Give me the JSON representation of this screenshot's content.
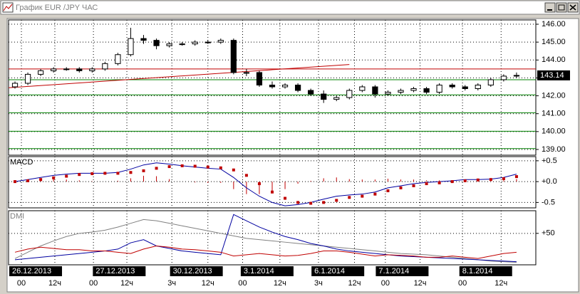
{
  "window": {
    "title": "График EUR /JPY ЧАС"
  },
  "chart_data": [
    {
      "type": "candlestick",
      "xlim": [
        -0.5,
        40.5
      ],
      "ylim": [
        138.68,
        146.24
      ],
      "yticks": [
        {
          "value": 139,
          "label": "139.00"
        },
        {
          "value": 140,
          "label": "140.00"
        },
        {
          "value": 141,
          "label": "141.00"
        },
        {
          "value": 142,
          "label": "142.00"
        },
        {
          "value": 143,
          "label": "143.00"
        },
        {
          "value": 144,
          "label": "144.00"
        },
        {
          "value": 145,
          "label": "145.00"
        },
        {
          "value": 146,
          "label": "146.00"
        }
      ],
      "xticks": [
        {
          "value": 0.5,
          "label": "00"
        },
        {
          "value": 3.1,
          "label": "12ч"
        },
        {
          "value": 6.1,
          "label": "00"
        },
        {
          "value": 8.7,
          "label": "12ч"
        },
        {
          "value": 12.2,
          "label": "3ч"
        },
        {
          "value": 15,
          "label": "12ч"
        },
        {
          "value": 17.7,
          "label": "00"
        },
        {
          "value": 20.6,
          "label": "12ч"
        },
        {
          "value": 23.6,
          "label": "3ч"
        },
        {
          "value": 26.4,
          "label": "12ч"
        },
        {
          "value": 28.8,
          "label": "00"
        },
        {
          "value": 31.5,
          "label": "12ч"
        },
        {
          "value": 34.8,
          "label": "00"
        },
        {
          "value": 37.8,
          "label": "12ч"
        }
      ],
      "dates": [
        {
          "value": 0,
          "label": "26.12.2013"
        },
        {
          "value": 6.5,
          "label": "27.12.2013"
        },
        {
          "value": 12.5,
          "label": "30.12.2013"
        },
        {
          "value": 18,
          "label": "3.1.2014"
        },
        {
          "value": 23.5,
          "label": "6.1.2014"
        },
        {
          "value": 28.5,
          "label": "7.1.2014"
        },
        {
          "value": 35,
          "label": "8.1.2014"
        }
      ],
      "open": [
        142.5,
        142.7,
        143.2,
        143.4,
        143.5,
        143.5,
        143.4,
        143.5,
        143.8,
        144.3,
        145.2,
        145.1,
        144.8,
        144.9,
        144.9,
        145.0,
        145.0,
        145.1,
        143.3,
        143.3,
        142.6,
        142.5,
        142.6,
        142.3,
        142.1,
        141.8,
        141.9,
        142.3,
        142.5,
        142.1,
        142.2,
        142.3,
        142.4,
        142.2,
        142.6,
        142.5,
        142.4,
        142.6,
        142.9,
        143.1
      ],
      "high": [
        142.8,
        143.3,
        143.5,
        143.6,
        143.6,
        143.6,
        143.6,
        143.9,
        144.4,
        145.8,
        145.4,
        145.2,
        145.0,
        145.0,
        145.1,
        145.1,
        145.2,
        145.2,
        143.5,
        143.4,
        142.8,
        142.7,
        142.7,
        142.4,
        142.3,
        142.0,
        142.4,
        142.6,
        142.6,
        142.3,
        142.4,
        142.5,
        142.5,
        142.7,
        142.7,
        142.6,
        142.7,
        143.0,
        143.2,
        143.3
      ],
      "low": [
        142.4,
        142.6,
        143.1,
        143.3,
        143.4,
        143.3,
        143.3,
        143.4,
        143.7,
        144.2,
        144.9,
        144.6,
        144.7,
        144.8,
        144.8,
        144.9,
        144.9,
        143.2,
        143.1,
        142.5,
        142.4,
        142.4,
        142.2,
        142.0,
        141.6,
        141.7,
        141.8,
        142.2,
        141.9,
        142.0,
        142.1,
        142.2,
        142.1,
        142.1,
        142.4,
        142.3,
        142.3,
        142.5,
        142.8,
        143.0
      ],
      "close": [
        142.7,
        143.2,
        143.4,
        143.5,
        143.5,
        143.4,
        143.5,
        143.8,
        144.3,
        145.2,
        145.1,
        144.8,
        144.9,
        144.9,
        145.0,
        145.0,
        145.1,
        143.3,
        143.3,
        142.6,
        142.5,
        142.6,
        142.3,
        142.1,
        141.8,
        141.9,
        142.3,
        142.5,
        142.1,
        142.2,
        142.3,
        142.4,
        142.2,
        142.6,
        142.5,
        142.4,
        142.6,
        142.9,
        143.1,
        143.14
      ],
      "levels": [
        {
          "value": 143.5,
          "color": "#c00000"
        },
        {
          "value": 142.9,
          "color": "#008000"
        },
        {
          "value": 142.05,
          "color": "#008000"
        },
        {
          "value": 141.05,
          "color": "#008000"
        },
        {
          "value": 140.02,
          "color": "#008000"
        },
        {
          "value": 139.05,
          "color": "#008000"
        }
      ],
      "trendline": {
        "x": [
          -0.5,
          26
        ],
        "y": [
          142.45,
          143.75
        ],
        "color": "#c00000"
      },
      "last_price": {
        "value": 143.14,
        "label": "143.14"
      }
    },
    {
      "type": "macd",
      "title": "MACD",
      "ylim": [
        -0.63,
        0.6
      ],
      "yticks": [
        {
          "value": 0.5,
          "label": "+0.5"
        },
        {
          "value": 0,
          "label": "+0.0"
        },
        {
          "value": -0.5,
          "label": "-0.5"
        }
      ],
      "macd": [
        0.0,
        0.05,
        0.1,
        0.15,
        0.18,
        0.2,
        0.2,
        0.2,
        0.22,
        0.3,
        0.4,
        0.45,
        0.42,
        0.38,
        0.35,
        0.32,
        0.3,
        0.1,
        -0.15,
        -0.35,
        -0.5,
        -0.58,
        -0.55,
        -0.5,
        -0.42,
        -0.35,
        -0.32,
        -0.3,
        -0.25,
        -0.15,
        -0.1,
        -0.05,
        -0.02,
        0.0,
        0.02,
        0.05,
        0.05,
        0.06,
        0.1,
        0.18
      ],
      "signal": [
        0.0,
        0.02,
        0.05,
        0.09,
        0.13,
        0.17,
        0.19,
        0.2,
        0.2,
        0.22,
        0.26,
        0.32,
        0.36,
        0.38,
        0.37,
        0.35,
        0.33,
        0.28,
        0.15,
        -0.05,
        -0.25,
        -0.4,
        -0.5,
        -0.52,
        -0.5,
        -0.45,
        -0.38,
        -0.35,
        -0.3,
        -0.22,
        -0.15,
        -0.1,
        -0.05,
        -0.03,
        0.0,
        0.02,
        0.04,
        0.05,
        0.07,
        0.12
      ],
      "histogram": [
        0,
        0.03,
        0.05,
        0.06,
        0.05,
        0.03,
        0.01,
        0,
        0.02,
        0.08,
        0.14,
        0.13,
        0.06,
        0,
        -0.02,
        -0.03,
        -0.03,
        -0.18,
        -0.3,
        -0.3,
        -0.25,
        -0.18,
        -0.05,
        0.02,
        0.08,
        0.1,
        0.06,
        0.05,
        0.05,
        0.07,
        0.05,
        0.05,
        0.03,
        0.03,
        0.02,
        0.03,
        0.01,
        0.01,
        0.03,
        0.06
      ]
    },
    {
      "type": "dmi",
      "title": "DMI",
      "ylim": [
        0,
        86
      ],
      "yticks": [
        {
          "value": 50,
          "label": "+50"
        }
      ],
      "series": [
        {
          "color": "#808080",
          "values": [
            10,
            20,
            30,
            38,
            45,
            50,
            52,
            55,
            60,
            66,
            72,
            70,
            66,
            62,
            58,
            54,
            50,
            46,
            42,
            40,
            38,
            36,
            34,
            32,
            30,
            28,
            26,
            24,
            22,
            20,
            18,
            17,
            16,
            14,
            12,
            10,
            8,
            6,
            5,
            4
          ]
        },
        {
          "color": "#0000a0",
          "values": [
            8,
            10,
            12,
            14,
            16,
            18,
            20,
            22,
            25,
            35,
            40,
            30,
            26,
            22,
            20,
            18,
            16,
            80,
            70,
            60,
            52,
            45,
            40,
            34,
            30,
            25,
            22,
            20,
            18,
            16,
            14,
            13,
            12,
            11,
            10,
            9,
            8,
            7,
            6,
            5
          ]
        },
        {
          "color": "#c00000",
          "values": [
            20,
            25,
            28,
            26,
            24,
            24,
            22,
            22,
            20,
            18,
            25,
            30,
            28,
            25,
            24,
            22,
            20,
            14,
            16,
            18,
            16,
            14,
            15,
            18,
            22,
            22,
            20,
            17,
            14,
            16,
            15,
            14,
            12,
            12,
            14,
            12,
            10,
            14,
            18,
            20
          ]
        }
      ]
    }
  ]
}
